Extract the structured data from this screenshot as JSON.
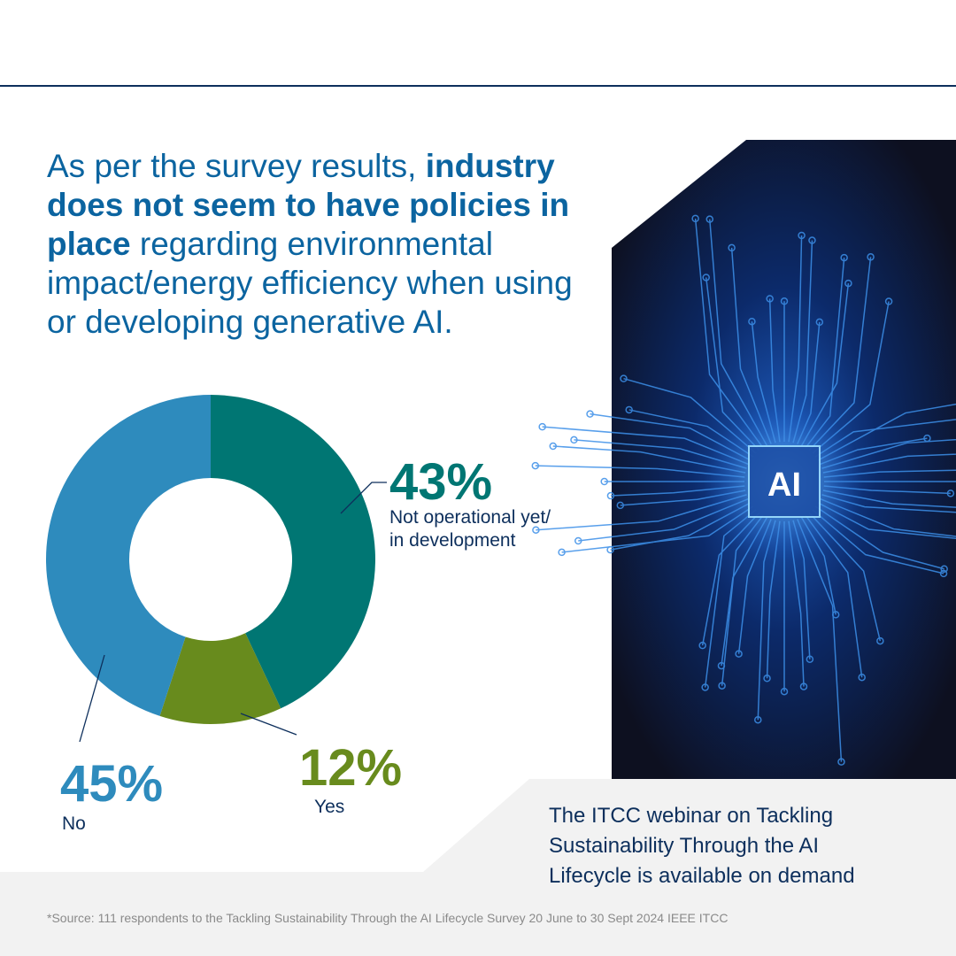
{
  "headline": {
    "intro": "As per the survey results, ",
    "bold": "industry does not seem to have policies in place",
    "rest": " regarding environmental impact/energy efficiency when using or developing generative AI."
  },
  "image": {
    "chip_label": "AI"
  },
  "chart_data": {
    "type": "pie",
    "donut": true,
    "slices": [
      {
        "label": "Not operational yet/ in development",
        "value": 43,
        "value_label": "43%",
        "color": "#007673"
      },
      {
        "label": "Yes",
        "value": 12,
        "value_label": "12%",
        "color": "#688b1d"
      },
      {
        "label": "No",
        "value": 45,
        "value_label": "45%",
        "color": "#2e8bbd"
      }
    ]
  },
  "label_lines": {
    "not_operational_1": "Not operational yet/",
    "not_operational_2": "in development"
  },
  "cta": "The ITCC webinar on Tackling Sustainability Through the AI Lifecycle is available on demand",
  "source": "*Source: 111 respondents to the Tackling Sustainability Through the AI Lifecycle Survey 20 June to 30 Sept 2024 IEEE ITCC"
}
